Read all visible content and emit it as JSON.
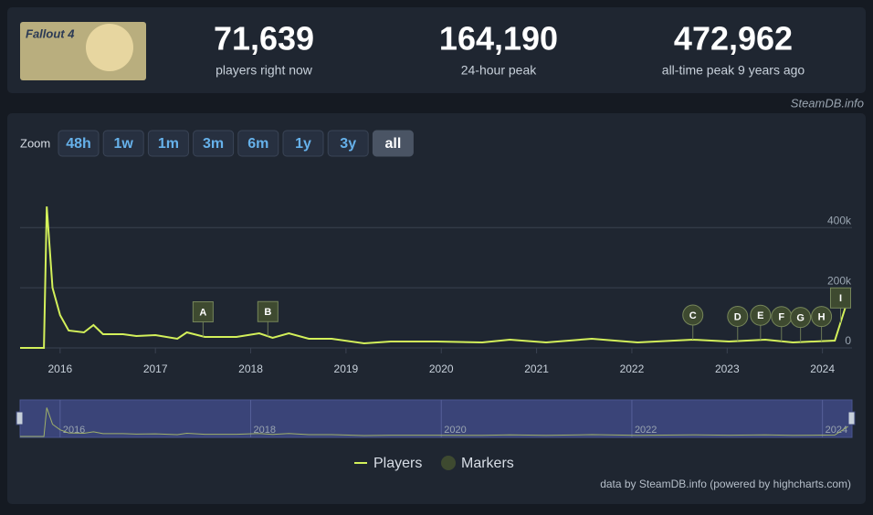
{
  "header": {
    "logo_text": "Fallout 4",
    "stats": [
      {
        "value": "71,639",
        "label": "players right now"
      },
      {
        "value": "164,190",
        "label": "24-hour peak"
      },
      {
        "value": "472,962",
        "label": "all-time peak 9 years ago"
      }
    ],
    "credit": "SteamDB.info"
  },
  "zoom": {
    "label": "Zoom",
    "buttons": [
      "48h",
      "1w",
      "1m",
      "3m",
      "6m",
      "1y",
      "3y",
      "all"
    ],
    "active": 7
  },
  "chart_data": {
    "type": "line",
    "x": [
      2015.58,
      2015.75,
      2015.83,
      2015.86,
      2015.92,
      2016.0,
      2016.09,
      2016.25,
      2016.35,
      2016.45,
      2016.66,
      2016.8,
      2017.0,
      2017.23,
      2017.33,
      2017.52,
      2017.85,
      2018.09,
      2018.23,
      2018.4,
      2018.61,
      2018.85,
      2019.19,
      2019.47,
      2019.95,
      2020.43,
      2020.72,
      2021.1,
      2021.58,
      2022.06,
      2022.64,
      2023.02,
      2023.4,
      2023.69,
      2024.13,
      2024.27
    ],
    "series": [
      {
        "name": "Players",
        "color": "#d3f05a",
        "values": [
          0,
          0,
          0,
          470000,
          200000,
          109000,
          57600,
          51500,
          75800,
          45500,
          45500,
          39400,
          42400,
          30300,
          51500,
          36400,
          36400,
          48500,
          33300,
          48500,
          30300,
          30300,
          15200,
          21200,
          21200,
          18200,
          27300,
          18200,
          30300,
          18200,
          27300,
          21200,
          27300,
          18200,
          24200,
          164000
        ]
      }
    ],
    "markers": {
      "name": "Markers",
      "color": "#3e4a30",
      "x": [
        2017.5,
        2018.18,
        2022.64,
        2023.11,
        2023.35,
        2023.57,
        2023.77,
        2023.99,
        2024.19
      ],
      "labels": [
        "A",
        "B",
        "C",
        "D",
        "E",
        "F",
        "G",
        "H",
        "I"
      ],
      "shapes": [
        "square",
        "square",
        "circle",
        "circle",
        "circle",
        "circle",
        "circle",
        "circle",
        "square"
      ]
    },
    "xlim": [
      2015.58,
      2024.31
    ],
    "xticks": [
      2016,
      2017,
      2018,
      2019,
      2020,
      2021,
      2022,
      2023,
      2024
    ],
    "ylim": [
      0,
      580000
    ],
    "yticks": [
      0,
      {
        "value": 200000,
        "label": "200k"
      },
      {
        "value": 400000,
        "label": "400k"
      }
    ],
    "navigator_xticks": [
      2016,
      2018,
      2020,
      2022,
      2024
    ],
    "grid": true,
    "credits": "data by SteamDB.info (powered by highcharts.com)"
  }
}
